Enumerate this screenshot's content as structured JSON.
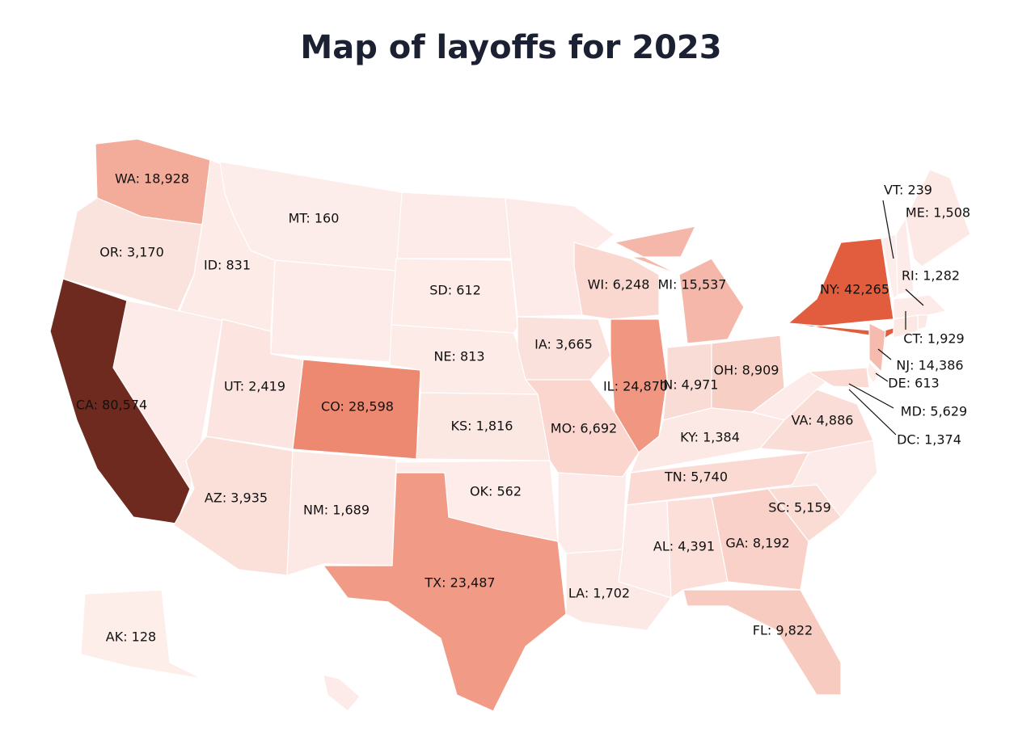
{
  "title": "Map of layoffs for 2023",
  "colors": [
    "#fdeeeb",
    "#e8603f",
    "#6e2a1f"
  ],
  "states": [
    {
      "label": "WA: 18,928",
      "value": 18928
    },
    {
      "label": "OR: 3,170",
      "value": 3170
    },
    {
      "label": "ID: 831",
      "value": 831
    },
    {
      "label": "MT: 160",
      "value": 160
    },
    {
      "label": "CA: 80,574",
      "value": 80574
    },
    {
      "label": "UT: 2,419",
      "value": 2419
    },
    {
      "label": "CO: 28,598",
      "value": 28598
    },
    {
      "label": "AZ: 3,935",
      "value": 3935
    },
    {
      "label": "NM: 1,689",
      "value": 1689
    },
    {
      "label": "SD: 612",
      "value": 612
    },
    {
      "label": "NE: 813",
      "value": 813
    },
    {
      "label": "KS: 1,816",
      "value": 1816
    },
    {
      "label": "OK: 562",
      "value": 562
    },
    {
      "label": "TX: 23,487",
      "value": 23487
    },
    {
      "label": "IA: 3,665",
      "value": 3665
    },
    {
      "label": "MO: 6,692",
      "value": 6692
    },
    {
      "label": "LA: 1,702",
      "value": 1702
    },
    {
      "label": "WI: 6,248",
      "value": 6248
    },
    {
      "label": "MI: 15,537",
      "value": 15537
    },
    {
      "label": "IL: 24,870",
      "value": 24870
    },
    {
      "label": "IN: 4,971",
      "value": 4971
    },
    {
      "label": "OH: 8,909",
      "value": 8909
    },
    {
      "label": "KY: 1,384",
      "value": 1384
    },
    {
      "label": "TN: 5,740",
      "value": 5740
    },
    {
      "label": "AL: 4,391",
      "value": 4391
    },
    {
      "label": "GA: 8,192",
      "value": 8192
    },
    {
      "label": "SC: 5,159",
      "value": 5159
    },
    {
      "label": "FL: 9,822",
      "value": 9822
    },
    {
      "label": "VA: 4,886",
      "value": 4886
    },
    {
      "label": "NY: 42,265",
      "value": 42265
    },
    {
      "label": "VT: 239",
      "value": 239
    },
    {
      "label": "ME: 1,508",
      "value": 1508
    },
    {
      "label": "RI: 1,282",
      "value": 1282
    },
    {
      "label": "CT: 1,929",
      "value": 1929
    },
    {
      "label": "NJ: 14,386",
      "value": 14386
    },
    {
      "label": "DE: 613",
      "value": 613
    },
    {
      "label": "MD: 5,629",
      "value": 5629
    },
    {
      "label": "DC: 1,374",
      "value": 1374
    },
    {
      "label": "AK: 128",
      "value": 128
    }
  ]
}
